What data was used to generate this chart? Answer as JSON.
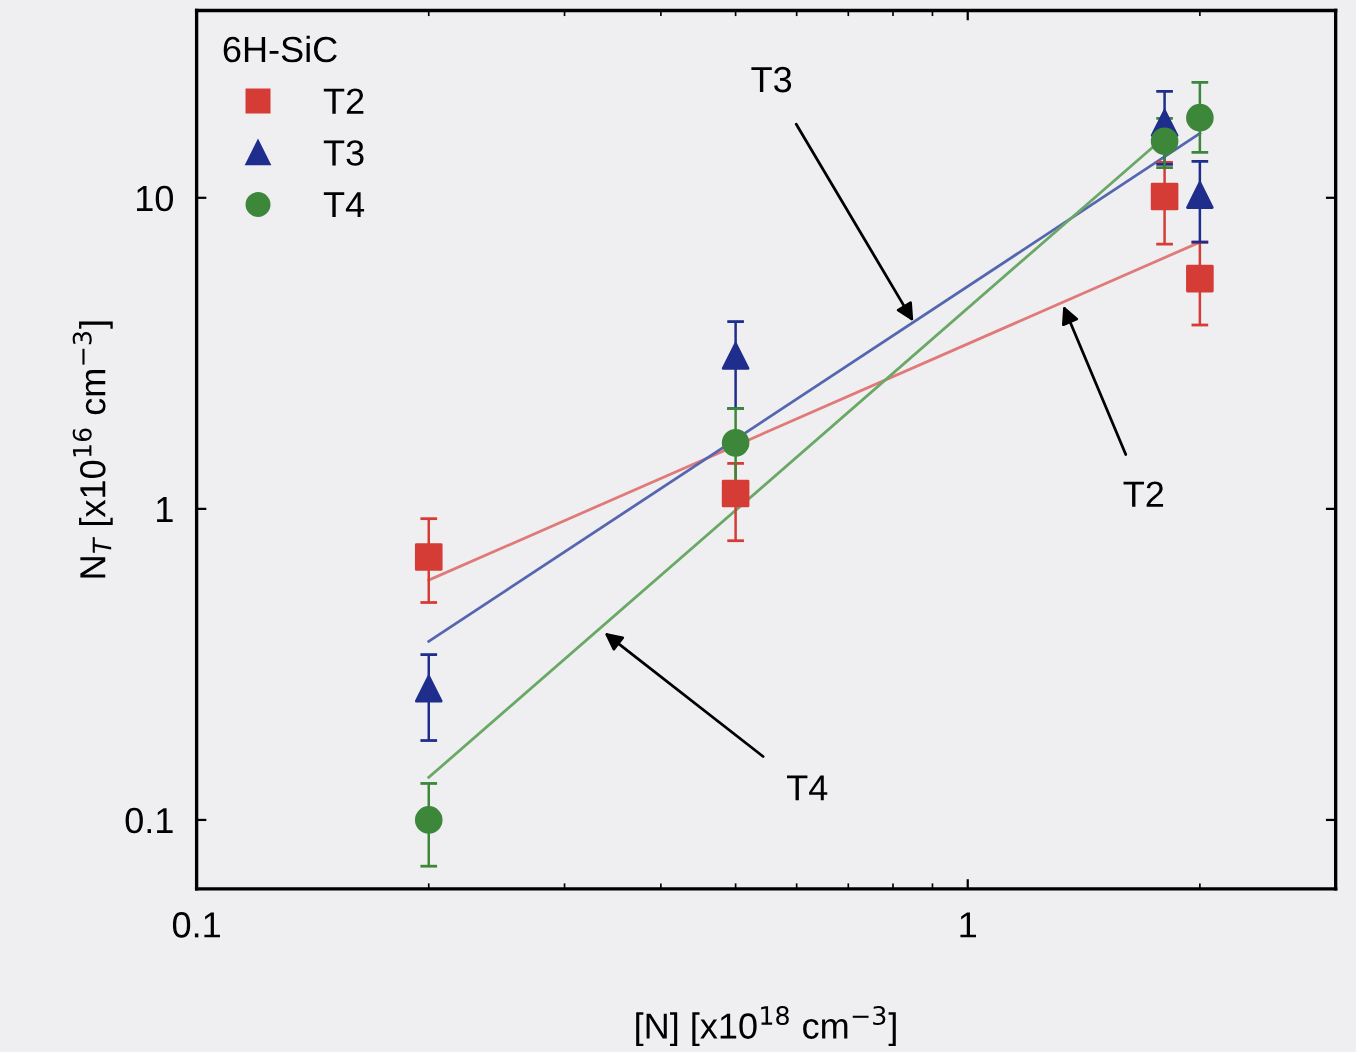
{
  "chart_data": {
    "type": "scatter",
    "xlabel": "[N] [x10$^{18}$ cm$^{−3}$]",
    "ylabel": "N$_{T}$ [x10$^{16}$ cm$^{−3}$]",
    "legend_title": "6H-SiC",
    "legend": "top left",
    "log": "xy",
    "grid": false,
    "xlim": [
      0.1,
      3
    ],
    "ylim": [
      0.06,
      40
    ],
    "xticks": [
      0.1,
      1
    ],
    "yticks": [
      0.1,
      1,
      10
    ],
    "series": [
      {
        "name": "T2",
        "marker": "square",
        "color": "#d63c36",
        "x": [
          0.2,
          0.5,
          1.8,
          2
        ],
        "values": [
          0.7,
          1.12,
          10.1,
          5.5
        ],
        "errors": [
          [
            0.5,
            0.93
          ],
          [
            0.79,
            1.4
          ],
          [
            7.1,
            13
          ],
          [
            3.9,
            7.2
          ]
        ]
      },
      {
        "name": "T3",
        "marker": "triangle",
        "color": "#1f2e8c",
        "x": [
          0.2,
          0.5,
          1.8,
          2
        ],
        "values": [
          0.264,
          3.1,
          17.4,
          10.2
        ],
        "errors": [
          [
            0.18,
            0.34
          ],
          [
            2.1,
            4.0
          ],
          [
            12.8,
            22
          ],
          [
            7.2,
            13.1
          ]
        ]
      },
      {
        "name": "T4",
        "marker": "circle",
        "color": "#3d873a",
        "x": [
          0.2,
          0.5,
          1.8,
          2
        ],
        "values": [
          0.1,
          1.63,
          15.2,
          18.1
        ],
        "errors": [
          [
            0.071,
            0.131
          ],
          [
            1.2,
            2.1
          ],
          [
            12.5,
            18
          ],
          [
            14,
            23.5
          ]
        ]
      },
      {
        "type": "line",
        "color": "#e07a78",
        "x": [
          0.2,
          2
        ],
        "values": [
          0.59,
          7.2
        ]
      },
      {
        "type": "line",
        "color": "#5566b0",
        "x": [
          0.2,
          2
        ],
        "values": [
          0.375,
          16.1
        ]
      },
      {
        "type": "line",
        "color": "#6aa866",
        "x": [
          0.2,
          1.8
        ],
        "values": [
          0.137,
          15.7
        ]
      }
    ],
    "annotations": [
      {
        "text": "T3",
        "x": 0.85,
        "y": 4.0
      },
      {
        "text": "T2",
        "x": 1.33,
        "y": 4.5
      },
      {
        "text": "T4",
        "x": 0.338,
        "y": 0.4
      }
    ]
  }
}
